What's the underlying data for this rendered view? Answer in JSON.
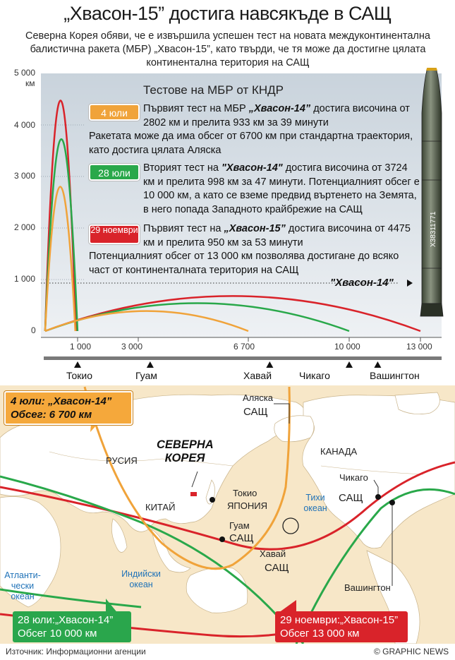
{
  "header": {
    "title": "„Хвасон-15” достига навсякъде в САЩ",
    "subtitle": "Северна Корея обяви, че е извършила успешен тест на новата междуконтинентална балистична ракета (МБР) „Хвасон-15”, като твърди, че тя може да достигне цялата континентална територия на САЩ"
  },
  "panel": {
    "title": "Тестове на МБР от КНДР",
    "tests": [
      {
        "tag": "4 юли",
        "color": "#f0a33a",
        "pre": "Първият тест на МБР ",
        "name": "„Хвасон-14”",
        "post": " достига височина от 2802 км и прелита 933 км за 39 минути",
        "extra": "Ракетата може да има обсег от 6700 км при стандартна траектория, като достига цялата Аляска"
      },
      {
        "tag": "28 юли",
        "color": "#29a84a",
        "pre": "Вторият тест на ",
        "name": "\"Хвасон-14\"",
        "post": " достига височина от 3724 км и прелита 998 км за 47 минути. Потенциалният обсег е 10 000 км, а като се вземе предвид въртенето на Земята, в него попада Западното крайбрежие на САЩ",
        "extra": ""
      },
      {
        "tag": "29 ноември",
        "color": "#d9232a",
        "pre": "Първият тест на ",
        "name": "„Хвасон-15”",
        "post": " достига височина от 4475 км и прелита 950 км за 53 минути",
        "extra": "Потенциалният обсег от 13 000 км позволява достигане до всяко част от континенталната територия на САЩ"
      }
    ],
    "missile_label": "\"Хвасон-14\"",
    "missile_code": "Х38311771"
  },
  "chart_data": {
    "type": "line",
    "ylabel": "км",
    "ylim": [
      0,
      5000
    ],
    "y_ticks": [
      "5 000",
      "4 000",
      "3 000",
      "2 000",
      "1 000",
      "0"
    ],
    "x_ticks": [
      "1 000",
      "3 000",
      "6 700",
      "10 000",
      "13 000"
    ],
    "x_tick_values": [
      1000,
      3000,
      6700,
      10000,
      13000
    ],
    "series": [
      {
        "name": "4 юли",
        "apogee_km": 2802,
        "distance_km": 933,
        "range_km": 6700,
        "color": "#f0a33a"
      },
      {
        "name": "28 юли",
        "apogee_km": 3724,
        "distance_km": 998,
        "range_km": 10000,
        "color": "#29a84a"
      },
      {
        "name": "29 ноември",
        "apogee_km": 4475,
        "distance_km": 950,
        "range_km": 13000,
        "color": "#d9232a"
      }
    ],
    "reference_line_km": 1000
  },
  "scale": {
    "cities": [
      {
        "name": "Токио",
        "km": 1000
      },
      {
        "name": "Гуам",
        "km": 3400
      },
      {
        "name": "Хавай",
        "km": 7400
      },
      {
        "name": "Чикаго",
        "km": 10000
      },
      {
        "name": "Вашингтон",
        "km": 11200
      }
    ]
  },
  "map": {
    "callouts": {
      "orange_line1": "4 юли: „Хвасон-14”",
      "orange_line2": "Обсег: 6 700 км",
      "green_line1": "28 юли:„Хвасон-14”",
      "green_line2": "Обсег 10 000 км",
      "red_line1": "29 ноември:„Хвасон-15”",
      "red_line2": "Обсег 13 000 км"
    },
    "north_korea": "СЕВЕРНА КОРЕЯ",
    "labels": {
      "alaska": "Аляска",
      "usa1": "САЩ",
      "canada": "КАНАДА",
      "russia": "РУСИЯ",
      "china": "КИТАЙ",
      "tokyo": "Токио",
      "japan": "ЯПОНИЯ",
      "guam": "Гуам",
      "usa2": "САЩ",
      "hawaii": "Хавай",
      "usa3": "САЩ",
      "chicago": "Чикаго",
      "usa4": "САЩ",
      "washington": "Вашингтон"
    },
    "oceans": {
      "pacific": "Тихи океан",
      "indian": "Индийски океан",
      "atlantic": "Атланти-чески океан"
    }
  },
  "footer": {
    "source": "Източник: Информационни агенции",
    "credit": "© GRAPHIC NEWS"
  }
}
